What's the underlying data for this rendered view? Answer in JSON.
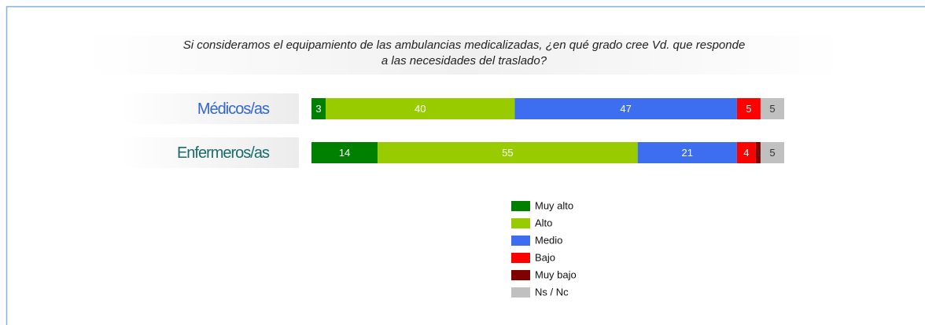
{
  "chart_data": {
    "type": "stacked-bar-horizontal",
    "title": [
      "Si consideramos el equipamiento de las ambulancias medicalizadas, ¿en qué grado cree Vd. que responde",
      "a las necesidades del traslado?"
    ],
    "categories": [
      "Médicos/as",
      "Enfermeros/as"
    ],
    "xlim": [
      0,
      100
    ],
    "series": [
      {
        "name": "Muy alto",
        "color": "#008000",
        "values": [
          3,
          14
        ]
      },
      {
        "name": "Alto",
        "color": "#99cc00",
        "values": [
          40,
          55
        ]
      },
      {
        "name": "Medio",
        "color": "#3d6ef0",
        "values": [
          47,
          21
        ]
      },
      {
        "name": "Bajo",
        "color": "#ff0000",
        "values": [
          5,
          4
        ]
      },
      {
        "name": "Muy bajo",
        "color": "#800000",
        "values": [
          null,
          1
        ]
      },
      {
        "name": "Ns / Nc",
        "color": "#c0c0c0",
        "values": [
          5,
          5
        ]
      }
    ]
  }
}
